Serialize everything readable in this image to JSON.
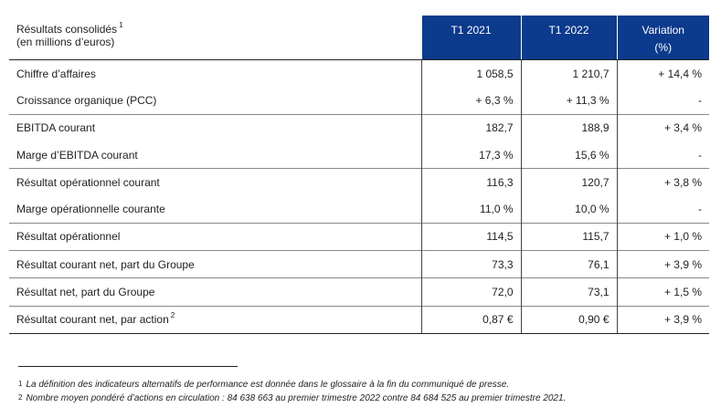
{
  "header": {
    "label_line1": "Résultats consolidés",
    "label_sup": "1",
    "label_line2": "(en millions d’euros)",
    "col1": "T1 2021",
    "col2": "T1 2022",
    "col3_line1": "Variation",
    "col3_line2": "(%)"
  },
  "rows": [
    {
      "label": "Chiffre d’affaires",
      "sup": "",
      "t1_2021": "1 058,5",
      "t1_2022": "1 210,7",
      "variation": "+ 14,4 %"
    },
    {
      "label": "Croissance organique (PCC)",
      "sup": "",
      "t1_2021": "+ 6,3 %",
      "t1_2022": "+ 11,3 %",
      "variation": "-"
    },
    {
      "label": "EBITDA courant",
      "sup": "",
      "t1_2021": "182,7",
      "t1_2022": "188,9",
      "variation": "+ 3,4 %"
    },
    {
      "label": "Marge d’EBITDA courant",
      "sup": "",
      "t1_2021": "17,3 %",
      "t1_2022": "15,6 %",
      "variation": "-"
    },
    {
      "label": "Résultat opérationnel courant",
      "sup": "",
      "t1_2021": "116,3",
      "t1_2022": "120,7",
      "variation": "+ 3,8 %"
    },
    {
      "label": "Marge opérationnelle courante",
      "sup": "",
      "t1_2021": "11,0 %",
      "t1_2022": "10,0 %",
      "variation": "-"
    },
    {
      "label": "Résultat opérationnel",
      "sup": "",
      "t1_2021": "114,5",
      "t1_2022": "115,7",
      "variation": "+ 1,0 %"
    },
    {
      "label": "Résultat courant net, part du Groupe",
      "sup": "",
      "t1_2021": "73,3",
      "t1_2022": "76,1",
      "variation": "+ 3,9 %"
    },
    {
      "label": "Résultat net, part du Groupe",
      "sup": "",
      "t1_2021": "72,0",
      "t1_2022": "73,1",
      "variation": "+ 1,5 %"
    },
    {
      "label": "Résultat courant net, par action",
      "sup": "2",
      "t1_2021": "0,87 €",
      "t1_2022": "0,90 €",
      "variation": "+ 3,9 %"
    }
  ],
  "footnotes": [
    {
      "mark": "1",
      "text": "La définition des indicateurs alternatifs de performance est donnée dans le glossaire à la fin du communiqué de presse."
    },
    {
      "mark": "2",
      "text": "Nombre moyen pondéré d’actions en circulation : 84 638 663 au premier trimestre 2022 contre 84 684 525 au premier trimestre 2021."
    }
  ]
}
